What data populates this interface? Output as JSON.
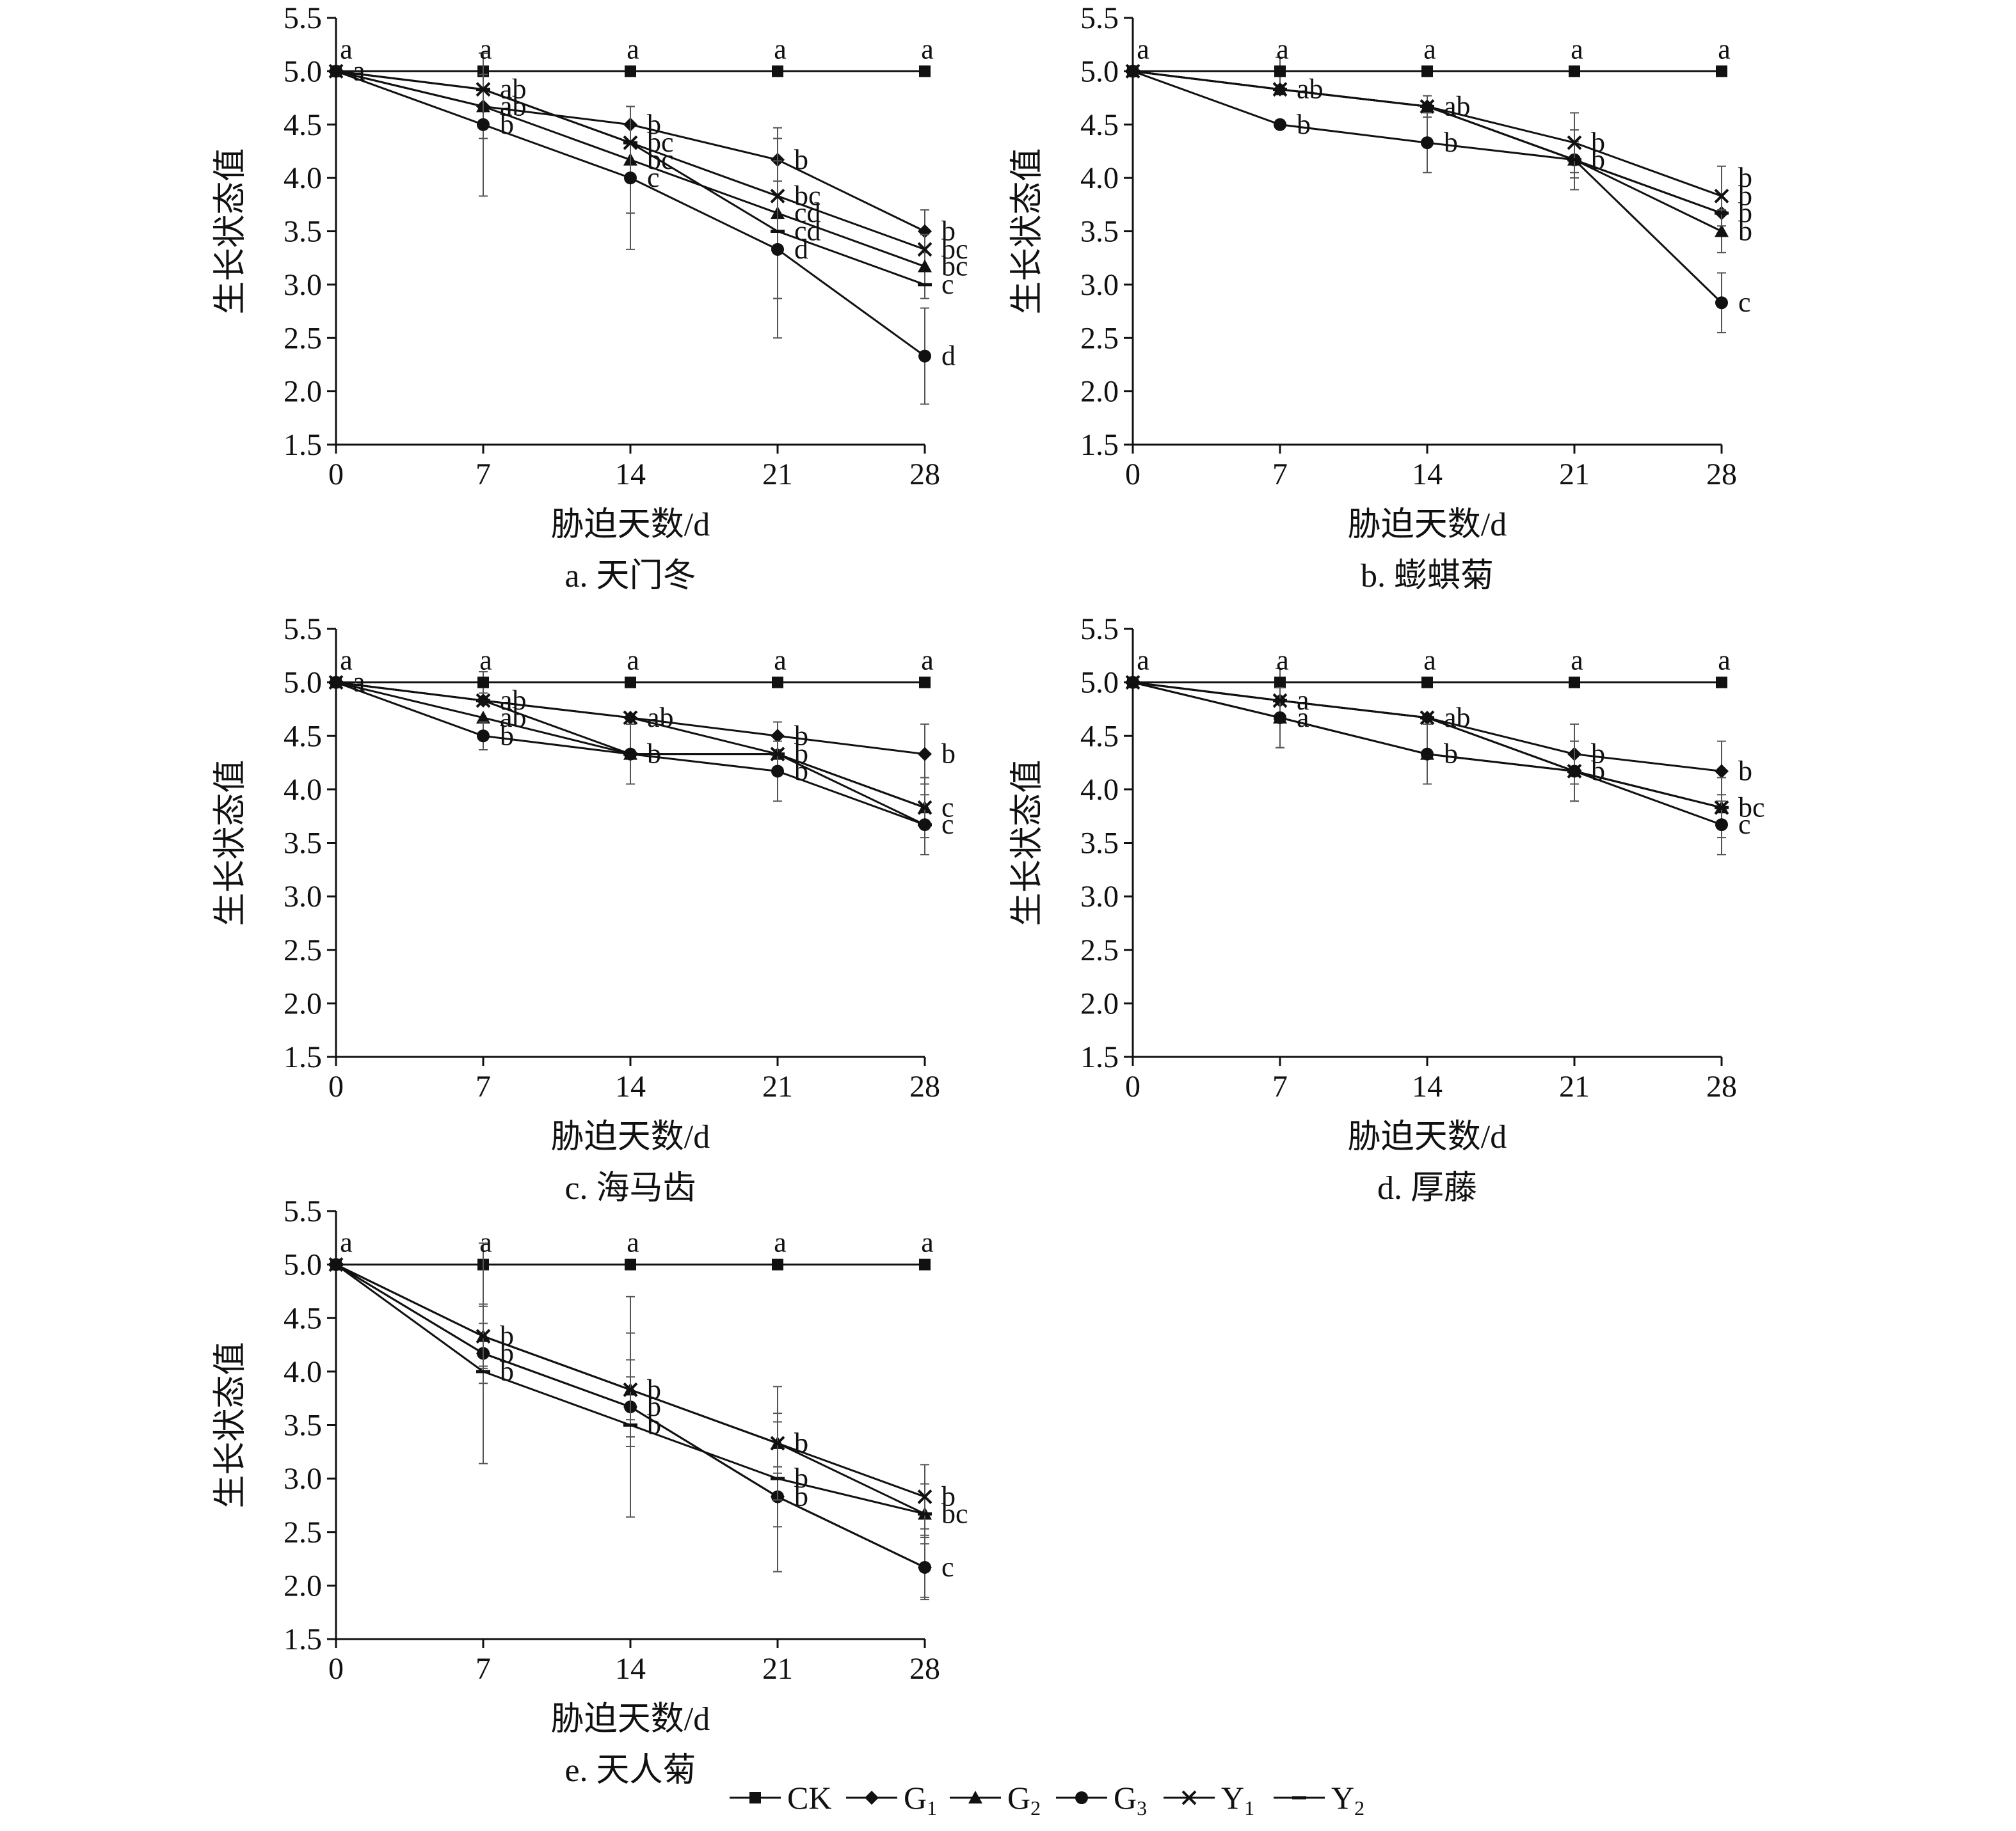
{
  "legend": [
    {
      "key": "CK",
      "label": "CK",
      "sub": ""
    },
    {
      "key": "G1",
      "label": "G",
      "sub": "1"
    },
    {
      "key": "G2",
      "label": "G",
      "sub": "2"
    },
    {
      "key": "G3",
      "label": "G",
      "sub": "3"
    },
    {
      "key": "Y1",
      "label": "Y",
      "sub": "1"
    },
    {
      "key": "Y2",
      "label": "Y",
      "sub": "2"
    }
  ],
  "markers": {
    "CK": "square",
    "G1": "diamond",
    "G2": "triangle",
    "G3": "circle",
    "Y1": "cross",
    "Y2": "dash"
  },
  "chart_data": [
    {
      "type": "line",
      "panel": "a",
      "caption": "a. 天门冬",
      "xlabel": "胁迫天数/d",
      "ylabel": "生长状态值",
      "x": [
        0,
        7,
        14,
        21,
        28
      ],
      "ylim": [
        1.5,
        5.5
      ],
      "yticks": [
        "1.5",
        "2.0",
        "2.5",
        "3.0",
        "3.5",
        "4.0",
        "4.5",
        "5.0",
        "5.5"
      ],
      "xticks": [
        "0",
        "7",
        "14",
        "21",
        "28"
      ],
      "series": [
        {
          "name": "CK",
          "values": [
            5.0,
            5.0,
            5.0,
            5.0,
            5.0
          ],
          "err": [
            0,
            0,
            0,
            0,
            0
          ]
        },
        {
          "name": "G1",
          "values": [
            5.0,
            4.67,
            4.5,
            4.17,
            3.5
          ],
          "err": [
            0,
            0,
            0,
            0.2,
            0.2
          ]
        },
        {
          "name": "G2",
          "values": [
            5.0,
            4.67,
            4.17,
            3.67,
            3.17
          ],
          "err": [
            0,
            0.3,
            0.5,
            0.8,
            0.3
          ]
        },
        {
          "name": "G3",
          "values": [
            5.0,
            4.5,
            4.0,
            3.33,
            2.33
          ],
          "err": [
            0,
            0.67,
            0.67,
            0.83,
            0.45
          ]
        },
        {
          "name": "Y1",
          "values": [
            5.0,
            4.83,
            4.33,
            3.83,
            3.33
          ],
          "err": [
            0,
            0,
            0,
            0,
            0
          ]
        },
        {
          "name": "Y2",
          "values": [
            5.0,
            4.83,
            4.33,
            3.5,
            3.0
          ],
          "err": [
            0,
            0,
            0,
            0,
            0
          ]
        }
      ],
      "top_letters": [
        "a",
        "a",
        "a",
        "a",
        "a"
      ],
      "letters": [
        {
          "x": 0,
          "y": 5.0,
          "text": "a"
        },
        {
          "x": 7,
          "y": 4.83,
          "text": "ab"
        },
        {
          "x": 7,
          "y": 4.67,
          "text": "ab"
        },
        {
          "x": 7,
          "y": 4.5,
          "text": "b"
        },
        {
          "x": 14,
          "y": 4.5,
          "text": "b"
        },
        {
          "x": 14,
          "y": 4.33,
          "text": "bc"
        },
        {
          "x": 14,
          "y": 4.17,
          "text": "bc"
        },
        {
          "x": 14,
          "y": 4.0,
          "text": "c"
        },
        {
          "x": 21,
          "y": 4.17,
          "text": "b"
        },
        {
          "x": 21,
          "y": 3.83,
          "text": "bc"
        },
        {
          "x": 21,
          "y": 3.67,
          "text": "cd"
        },
        {
          "x": 21,
          "y": 3.5,
          "text": "cd"
        },
        {
          "x": 21,
          "y": 3.33,
          "text": "d"
        },
        {
          "x": 28,
          "y": 3.5,
          "text": "b"
        },
        {
          "x": 28,
          "y": 3.33,
          "text": "bc"
        },
        {
          "x": 28,
          "y": 3.17,
          "text": "bc"
        },
        {
          "x": 28,
          "y": 3.0,
          "text": "c"
        },
        {
          "x": 28,
          "y": 2.33,
          "text": "d"
        }
      ]
    },
    {
      "type": "line",
      "panel": "b",
      "caption": "b. 蟛蜞菊",
      "xlabel": "胁迫天数/d",
      "ylabel": "生长状态值",
      "x": [
        0,
        7,
        14,
        21,
        28
      ],
      "ylim": [
        1.5,
        5.5
      ],
      "yticks": [
        "1.5",
        "2.0",
        "2.5",
        "3.0",
        "3.5",
        "4.0",
        "4.5",
        "5.0",
        "5.5"
      ],
      "xticks": [
        "0",
        "7",
        "14",
        "21",
        "28"
      ],
      "series": [
        {
          "name": "CK",
          "values": [
            5.0,
            5.0,
            5.0,
            5.0,
            5.0
          ],
          "err": [
            0,
            0.13,
            0,
            0,
            0
          ]
        },
        {
          "name": "G1",
          "values": [
            5.0,
            4.83,
            4.67,
            4.17,
            3.67
          ],
          "err": [
            0,
            0,
            0,
            0,
            0
          ]
        },
        {
          "name": "G2",
          "values": [
            5.0,
            4.83,
            4.67,
            4.17,
            3.5
          ],
          "err": [
            0,
            0,
            0.1,
            0.17,
            0.2
          ]
        },
        {
          "name": "G3",
          "values": [
            5.0,
            4.5,
            4.33,
            4.17,
            2.83
          ],
          "err": [
            0,
            0,
            0.28,
            0.28,
            0.28
          ]
        },
        {
          "name": "Y1",
          "values": [
            5.0,
            4.83,
            4.67,
            4.33,
            3.83
          ],
          "err": [
            0,
            0,
            0,
            0.28,
            0.28
          ]
        },
        {
          "name": "Y2",
          "values": [
            5.0,
            4.83,
            4.67,
            4.17,
            3.67
          ],
          "err": [
            0,
            0,
            0,
            0,
            0
          ]
        }
      ],
      "top_letters": [
        "a",
        "a",
        "a",
        "a",
        "a"
      ],
      "letters": [
        {
          "x": 7,
          "y": 4.83,
          "text": "ab"
        },
        {
          "x": 7,
          "y": 4.5,
          "text": "b"
        },
        {
          "x": 14,
          "y": 4.67,
          "text": "ab"
        },
        {
          "x": 14,
          "y": 4.33,
          "text": "b"
        },
        {
          "x": 21,
          "y": 4.33,
          "text": "b"
        },
        {
          "x": 21,
          "y": 4.17,
          "text": "b"
        },
        {
          "x": 28,
          "y": 4.0,
          "text": "b"
        },
        {
          "x": 28,
          "y": 3.83,
          "text": "b"
        },
        {
          "x": 28,
          "y": 3.67,
          "text": "b"
        },
        {
          "x": 28,
          "y": 3.5,
          "text": "b"
        },
        {
          "x": 28,
          "y": 2.83,
          "text": "c"
        }
      ]
    },
    {
      "type": "line",
      "panel": "c",
      "caption": "c. 海马齿",
      "xlabel": "胁迫天数/d",
      "ylabel": "生长状态值",
      "x": [
        0,
        7,
        14,
        21,
        28
      ],
      "ylim": [
        1.5,
        5.5
      ],
      "yticks": [
        "1.5",
        "2.0",
        "2.5",
        "3.0",
        "3.5",
        "4.0",
        "4.5",
        "5.0",
        "5.5"
      ],
      "xticks": [
        "0",
        "7",
        "14",
        "21",
        "28"
      ],
      "series": [
        {
          "name": "CK",
          "values": [
            5.0,
            5.0,
            5.0,
            5.0,
            5.0
          ],
          "err": [
            0,
            0.1,
            0,
            0,
            0
          ]
        },
        {
          "name": "G1",
          "values": [
            5.0,
            4.83,
            4.67,
            4.5,
            4.33
          ],
          "err": [
            0,
            0,
            0,
            0.13,
            0.28
          ]
        },
        {
          "name": "G2",
          "values": [
            5.0,
            4.67,
            4.33,
            4.33,
            3.83
          ],
          "err": [
            0,
            0,
            0.28,
            0,
            0.28
          ]
        },
        {
          "name": "G3",
          "values": [
            5.0,
            4.5,
            4.33,
            4.17,
            3.67
          ],
          "err": [
            0,
            0.13,
            0.28,
            0.28,
            0.28
          ]
        },
        {
          "name": "Y1",
          "values": [
            5.0,
            4.83,
            4.67,
            4.33,
            3.83
          ],
          "err": [
            0,
            0,
            0,
            0,
            0
          ]
        },
        {
          "name": "Y2",
          "values": [
            5.0,
            4.83,
            4.33,
            4.33,
            3.67
          ],
          "err": [
            0,
            0,
            0,
            0,
            0
          ]
        }
      ],
      "top_letters": [
        "a",
        "a",
        "a",
        "a",
        "a"
      ],
      "letters": [
        {
          "x": 0,
          "y": 5.0,
          "text": "a"
        },
        {
          "x": 7,
          "y": 4.83,
          "text": "ab"
        },
        {
          "x": 7,
          "y": 4.67,
          "text": "ab"
        },
        {
          "x": 7,
          "y": 4.5,
          "text": "b"
        },
        {
          "x": 14,
          "y": 4.67,
          "text": "ab"
        },
        {
          "x": 14,
          "y": 4.33,
          "text": "b"
        },
        {
          "x": 21,
          "y": 4.5,
          "text": "b"
        },
        {
          "x": 21,
          "y": 4.33,
          "text": "b"
        },
        {
          "x": 21,
          "y": 4.17,
          "text": "b"
        },
        {
          "x": 28,
          "y": 4.33,
          "text": "b"
        },
        {
          "x": 28,
          "y": 3.83,
          "text": "c"
        },
        {
          "x": 28,
          "y": 3.67,
          "text": "c"
        }
      ]
    },
    {
      "type": "line",
      "panel": "d",
      "caption": "d. 厚藤",
      "xlabel": "胁迫天数/d",
      "ylabel": "生长状态值",
      "x": [
        0,
        7,
        14,
        21,
        28
      ],
      "ylim": [
        1.5,
        5.5
      ],
      "yticks": [
        "1.5",
        "2.0",
        "2.5",
        "3.0",
        "3.5",
        "4.0",
        "4.5",
        "5.0",
        "5.5"
      ],
      "xticks": [
        "0",
        "7",
        "14",
        "21",
        "28"
      ],
      "series": [
        {
          "name": "CK",
          "values": [
            5.0,
            5.0,
            5.0,
            5.0,
            5.0
          ],
          "err": [
            0,
            0.13,
            0,
            0,
            0
          ]
        },
        {
          "name": "G1",
          "values": [
            5.0,
            4.83,
            4.67,
            4.33,
            4.17
          ],
          "err": [
            0,
            0,
            0,
            0.28,
            0.28
          ]
        },
        {
          "name": "G2",
          "values": [
            5.0,
            4.67,
            4.33,
            4.17,
            3.83
          ],
          "err": [
            0,
            0.28,
            0.28,
            0.28,
            0.28
          ]
        },
        {
          "name": "G3",
          "values": [
            5.0,
            4.67,
            4.33,
            4.17,
            3.67
          ],
          "err": [
            0,
            0.28,
            0.28,
            0.28,
            0.28
          ]
        },
        {
          "name": "Y1",
          "values": [
            5.0,
            4.83,
            4.67,
            4.17,
            3.83
          ],
          "err": [
            0,
            0,
            0,
            0,
            0
          ]
        },
        {
          "name": "Y2",
          "values": [
            5.0,
            4.83,
            4.67,
            4.17,
            3.83
          ],
          "err": [
            0,
            0,
            0,
            0,
            0
          ]
        }
      ],
      "top_letters": [
        "a",
        "a",
        "a",
        "a",
        "a"
      ],
      "letters": [
        {
          "x": 7,
          "y": 4.83,
          "text": "a"
        },
        {
          "x": 7,
          "y": 4.67,
          "text": "a"
        },
        {
          "x": 14,
          "y": 4.67,
          "text": "ab"
        },
        {
          "x": 14,
          "y": 4.33,
          "text": "b"
        },
        {
          "x": 21,
          "y": 4.33,
          "text": "b"
        },
        {
          "x": 21,
          "y": 4.17,
          "text": "b"
        },
        {
          "x": 28,
          "y": 4.17,
          "text": "b"
        },
        {
          "x": 28,
          "y": 3.83,
          "text": "bc"
        },
        {
          "x": 28,
          "y": 3.67,
          "text": "c"
        }
      ]
    },
    {
      "type": "line",
      "panel": "e",
      "caption": "e. 天人菊",
      "xlabel": "胁迫天数/d",
      "ylabel": "生长状态值",
      "x": [
        0,
        7,
        14,
        21,
        28
      ],
      "ylim": [
        1.5,
        5.5
      ],
      "yticks": [
        "1.5",
        "2.0",
        "2.5",
        "3.0",
        "3.5",
        "4.0",
        "4.5",
        "5.0",
        "5.5"
      ],
      "xticks": [
        "0",
        "7",
        "14",
        "21",
        "28"
      ],
      "series": [
        {
          "name": "CK",
          "values": [
            5.0,
            5.0,
            5.0,
            5.0,
            5.0
          ],
          "err": [
            0,
            0,
            0,
            0,
            0
          ]
        },
        {
          "name": "G1",
          "values": [
            5.0,
            4.17,
            3.67,
            2.83,
            2.17
          ],
          "err": [
            0,
            0.28,
            0.28,
            0.28,
            0.28
          ]
        },
        {
          "name": "G2",
          "values": [
            5.0,
            4.33,
            3.83,
            3.33,
            2.67
          ],
          "err": [
            0,
            0.28,
            0.28,
            0.28,
            0.28
          ]
        },
        {
          "name": "G3",
          "values": [
            5.0,
            4.17,
            3.67,
            2.83,
            2.17
          ],
          "err": [
            0,
            1.03,
            1.03,
            0.7,
            0.3
          ]
        },
        {
          "name": "Y1",
          "values": [
            5.0,
            4.33,
            3.83,
            3.33,
            2.83
          ],
          "err": [
            0,
            0.3,
            0.53,
            0.53,
            0.3
          ]
        },
        {
          "name": "Y2",
          "values": [
            5.0,
            4.0,
            3.5,
            3.0,
            2.67
          ],
          "err": [
            0,
            0,
            0,
            0,
            0
          ]
        }
      ],
      "top_letters": [
        "a",
        "a",
        "a",
        "a",
        "a"
      ],
      "letters": [
        {
          "x": 7,
          "y": 4.33,
          "text": "b"
        },
        {
          "x": 7,
          "y": 4.17,
          "text": "b"
        },
        {
          "x": 7,
          "y": 4.0,
          "text": "b"
        },
        {
          "x": 14,
          "y": 3.83,
          "text": "b"
        },
        {
          "x": 14,
          "y": 3.67,
          "text": "b"
        },
        {
          "x": 14,
          "y": 3.5,
          "text": "b"
        },
        {
          "x": 21,
          "y": 3.33,
          "text": "b"
        },
        {
          "x": 21,
          "y": 3.33,
          "text": "b"
        },
        {
          "x": 21,
          "y": 3.0,
          "text": "b"
        },
        {
          "x": 21,
          "y": 2.83,
          "text": "b"
        },
        {
          "x": 28,
          "y": 2.83,
          "text": "b"
        },
        {
          "x": 28,
          "y": 2.67,
          "text": "bc"
        },
        {
          "x": 28,
          "y": 2.17,
          "text": "c"
        }
      ]
    }
  ]
}
